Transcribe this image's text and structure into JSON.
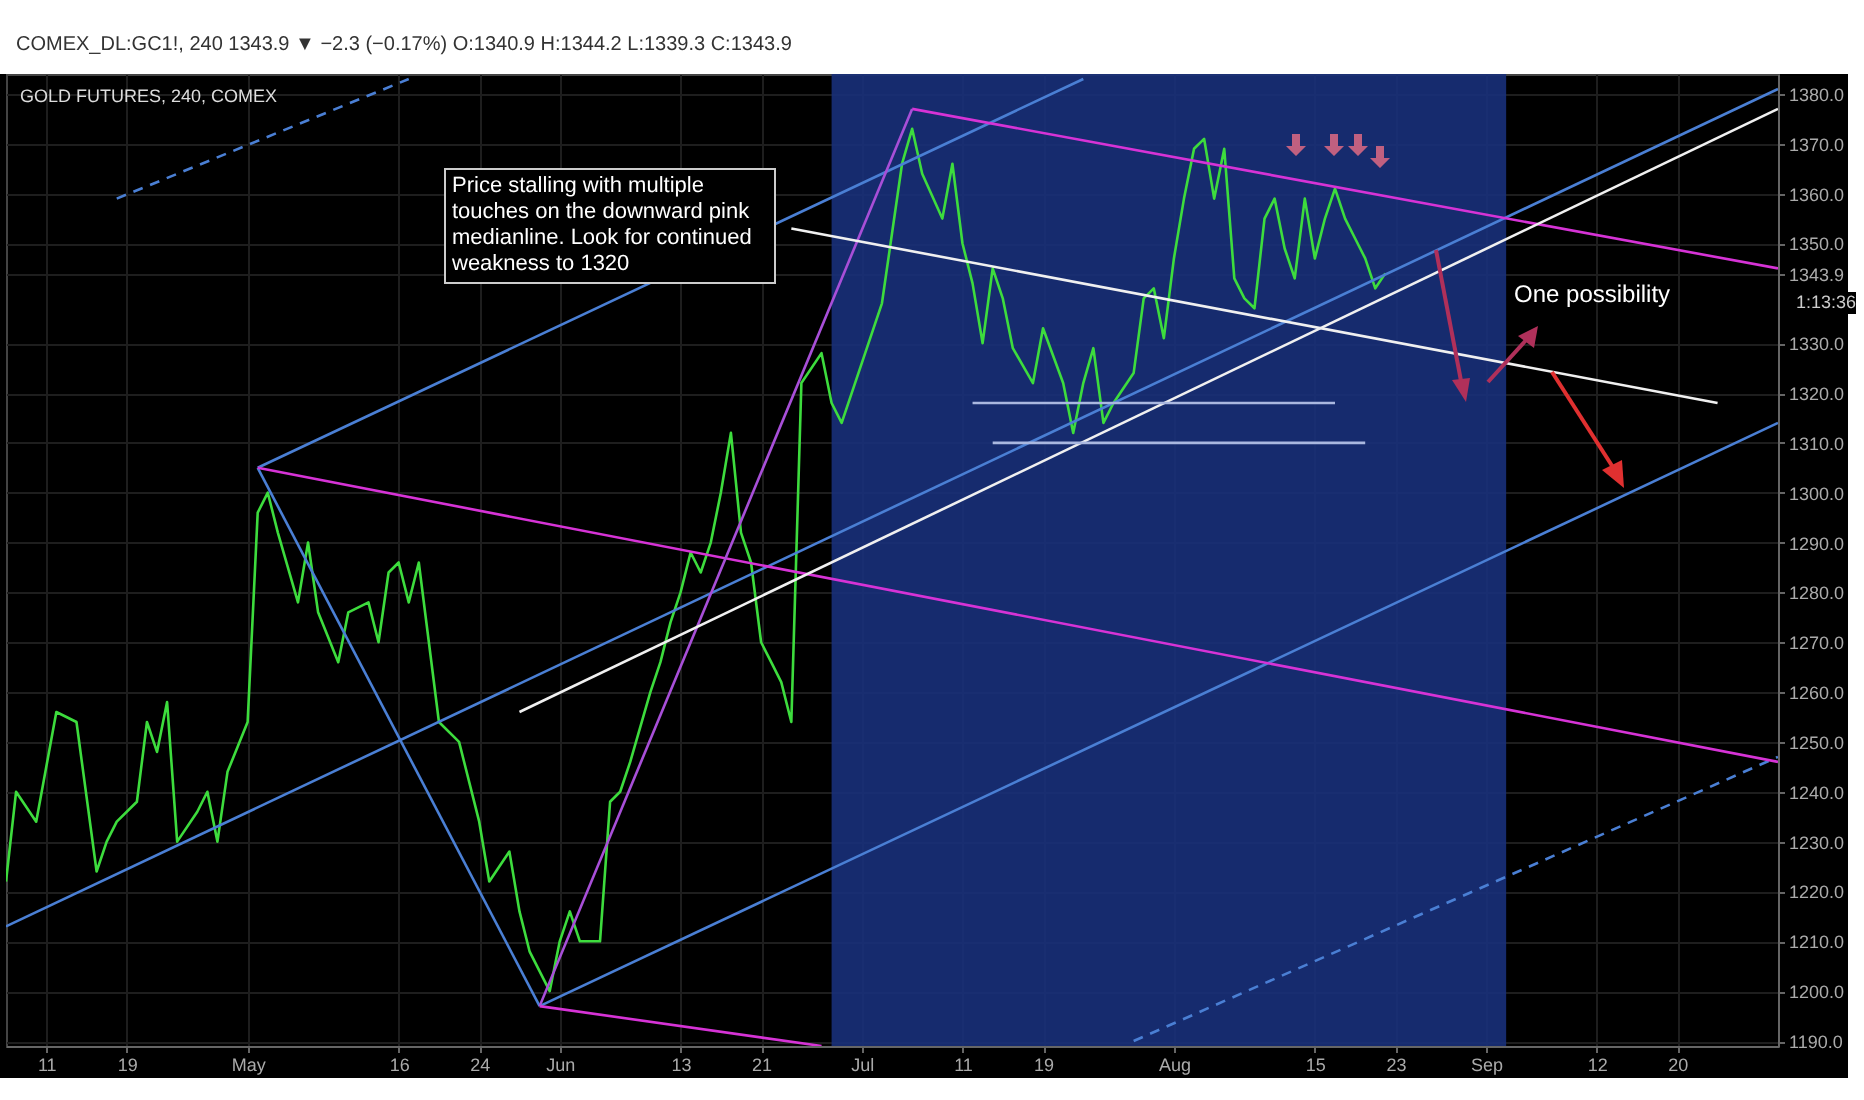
{
  "chart_data": {
    "type": "line",
    "title": "GOLD FUTURES, 240, COMEX",
    "subtitle": "COMEX_DL:GC1!, 240 1343.9 ▼ −2.3 (−0.17%) O:1340.9 H:1344.2 L:1339.3 C:1343.9",
    "annotations": [
      "Price stalling with multiple touches on the downward pink medianline.  Look for continued weakness to 1320",
      "One possibility",
      "1:13:36"
    ],
    "series": [
      {
        "color": "#3ddc3d",
        "x": [
          "--04-07",
          "--04-08",
          "--04-10",
          "--04-12",
          "--04-14",
          "--04-16",
          "--04-17",
          "--04-18",
          "--04-20",
          "--04-21",
          "--04-22",
          "--04-23",
          "--04-24",
          "--04-26",
          "--04-27",
          "--04-28",
          "--04-29",
          "--05-01",
          "--05-02",
          "--05-03",
          "--05-04",
          "--05-06",
          "--05-07",
          "--05-08",
          "--05-10",
          "--05-11",
          "--05-13",
          "--05-14",
          "--05-15",
          "--05-16",
          "--05-17",
          "--05-18",
          "--05-19",
          "--05-20",
          "--05-22",
          "--05-24",
          "--05-25",
          "--05-27",
          "--05-28",
          "--05-29",
          "--05-31",
          "--06-01",
          "--06-02",
          "--06-03",
          "--06-05",
          "--06-06",
          "--06-07",
          "--06-08",
          "--06-10",
          "--06-11",
          "--06-12",
          "--06-13",
          "--06-14",
          "--06-15",
          "--06-16",
          "--06-17",
          "--06-18",
          "--06-19",
          "--06-20",
          "--06-21",
          "--06-22",
          "--06-23",
          "--06-24",
          "--06-25",
          "--06-27",
          "--06-28",
          "--06-29",
          "--07-01",
          "--07-03",
          "--07-04",
          "--07-05",
          "--07-06",
          "--07-07",
          "--07-09",
          "--07-10",
          "--07-11",
          "--07-12",
          "--07-13",
          "--07-14",
          "--07-15",
          "--07-16",
          "--07-18",
          "--07-19",
          "--07-21",
          "--07-22",
          "--07-23",
          "--07-24",
          "--07-25",
          "--07-26",
          "--07-28",
          "--07-29",
          "--07-30",
          "--07-31",
          "--08-01",
          "--08-02",
          "--08-03",
          "--08-04",
          "--08-05",
          "--08-06",
          "--08-07",
          "--08-08",
          "--08-09",
          "--08-10",
          "--08-11",
          "--08-12",
          "--08-13",
          "--08-14",
          "--08-15",
          "--08-16",
          "--08-17",
          "--08-18",
          "--08-19",
          "--08-20",
          "--08-21",
          "--08-22"
        ],
        "values": [
          1222,
          1240,
          1234,
          1256,
          1254,
          1224,
          1230,
          1234,
          1238,
          1254,
          1248,
          1258,
          1230,
          1236,
          1240,
          1230,
          1244,
          1254,
          1296,
          1300,
          1292,
          1278,
          1290,
          1276,
          1266,
          1276,
          1278,
          1270,
          1284,
          1286,
          1278,
          1286,
          1270,
          1254,
          1250,
          1234,
          1222,
          1228,
          1216,
          1208,
          1200,
          1210,
          1216,
          1210,
          1210,
          1238,
          1240,
          1246,
          1260,
          1266,
          1274,
          1280,
          1288,
          1284,
          1290,
          1300,
          1312,
          1292,
          1286,
          1270,
          1266,
          1262,
          1254,
          1322,
          1328,
          1318,
          1314,
          1326,
          1338,
          1352,
          1366,
          1373,
          1364,
          1355,
          1366,
          1350,
          1342,
          1330,
          1345,
          1339,
          1329,
          1322,
          1333,
          1322,
          1312,
          1322,
          1329,
          1314,
          1318,
          1324,
          1339,
          1341,
          1331,
          1347,
          1359,
          1369,
          1371,
          1359,
          1369,
          1343,
          1339,
          1337,
          1355,
          1359,
          1349,
          1343,
          1359,
          1347,
          1355,
          1361,
          1355,
          1351,
          1347,
          1341,
          1344
        ]
      },
      {
        "color": "#4a7fd4",
        "x": [
          "--04-07",
          "--09-30"
        ],
        "values": [
          1213,
          1381
        ]
      },
      {
        "color": "#4a7fd4",
        "x": [
          "--05-30",
          "--09-30"
        ],
        "values": [
          1197,
          1314
        ]
      },
      {
        "color": "#4a7fd4",
        "x": [
          "--05-02",
          "--05-30"
        ],
        "values": [
          1305,
          1197
        ]
      },
      {
        "color": "#4a7fd4",
        "x": [
          "--05-02",
          "--07-23"
        ],
        "values": [
          1305,
          1383
        ]
      },
      {
        "color": "#4a7fd4",
        "line_style": "dashed",
        "x": [
          "--04-18",
          "--05-17"
        ],
        "values": [
          1359,
          1383
        ]
      },
      {
        "color": "#4a7fd4",
        "line_style": "dashed",
        "x": [
          "--07-28",
          "--09-30"
        ],
        "values": [
          1190,
          1247
        ]
      },
      {
        "color": "#d633d6",
        "x": [
          "--05-02",
          "--09-30"
        ],
        "values": [
          1305,
          1246
        ]
      },
      {
        "color": "#d633d6",
        "x": [
          "--07-06",
          "--09-30"
        ],
        "values": [
          1377,
          1345
        ]
      },
      {
        "color": "#d633d6",
        "x": [
          "--05-30",
          "--06-27"
        ],
        "values": [
          1197,
          1189
        ]
      },
      {
        "color": "#a84fd8",
        "x": [
          "--05-30",
          "--07-06"
        ],
        "values": [
          1197,
          1377
        ]
      },
      {
        "color": "#f0f0f0",
        "x": [
          "--05-28",
          "--09-30"
        ],
        "values": [
          1256,
          1377
        ]
      },
      {
        "color": "#f0f0f0",
        "x": [
          "--06-24",
          "--09-24"
        ],
        "values": [
          1353,
          1318
        ]
      },
      {
        "color": "#aab8e0",
        "x": [
          "--07-12",
          "--08-17"
        ],
        "values": [
          1318,
          1318
        ]
      },
      {
        "color": "#aab8e0",
        "x": [
          "--07-14",
          "--08-20"
        ],
        "values": [
          1310,
          1310
        ]
      }
    ],
    "bands": [
      {
        "axis": "x",
        "from": "--06-28",
        "to": "--09-03",
        "color": "#18307a"
      }
    ],
    "xlim": [
      "--04-07",
      "--09-30"
    ],
    "xticks": [
      {
        "value": "--04-11",
        "label": "11"
      },
      {
        "value": "--04-19",
        "label": "19"
      },
      {
        "value": "--05-01",
        "label": "May"
      },
      {
        "value": "--05-16",
        "label": "16"
      },
      {
        "value": "--05-24",
        "label": "24"
      },
      {
        "value": "--06-01",
        "label": "Jun"
      },
      {
        "value": "--06-13",
        "label": "13"
      },
      {
        "value": "--06-21",
        "label": "21"
      },
      {
        "value": "--07-01",
        "label": "Jul"
      },
      {
        "value": "--07-11",
        "label": "11"
      },
      {
        "value": "--07-19",
        "label": "19"
      },
      {
        "value": "--08-01",
        "label": "Aug"
      },
      {
        "value": "--08-15",
        "label": "15"
      },
      {
        "value": "--08-23",
        "label": "23"
      },
      {
        "value": "--09-01",
        "label": "Sep"
      },
      {
        "value": "--09-12",
        "label": "12"
      },
      {
        "value": "--09-20",
        "label": "20"
      }
    ],
    "ylim": [
      1189,
      1384
    ],
    "yticks": [
      {
        "value": 1190,
        "label": "1190.0"
      },
      {
        "value": 1200,
        "label": "1200.0"
      },
      {
        "value": 1210,
        "label": "1210.0"
      },
      {
        "value": 1220,
        "label": "1220.0"
      },
      {
        "value": 1230,
        "label": "1230.0"
      },
      {
        "value": 1240,
        "label": "1240.0"
      },
      {
        "value": 1250,
        "label": "1250.0"
      },
      {
        "value": 1260,
        "label": "1260.0"
      },
      {
        "value": 1270,
        "label": "1270.0"
      },
      {
        "value": 1280,
        "label": "1280.0"
      },
      {
        "value": 1290,
        "label": "1290.0"
      },
      {
        "value": 1300,
        "label": "1300.0"
      },
      {
        "value": 1310,
        "label": "1310.0"
      },
      {
        "value": 1320,
        "label": "1320.0"
      },
      {
        "value": 1330,
        "label": "1330.0"
      },
      {
        "value": 1343.9,
        "label": "1343.9"
      },
      {
        "value": 1350,
        "label": "1350.0"
      },
      {
        "value": 1360,
        "label": "1360.0"
      },
      {
        "value": 1370,
        "label": "1370.0"
      },
      {
        "value": 1380,
        "label": "1380.0"
      }
    ],
    "grid": true
  }
}
